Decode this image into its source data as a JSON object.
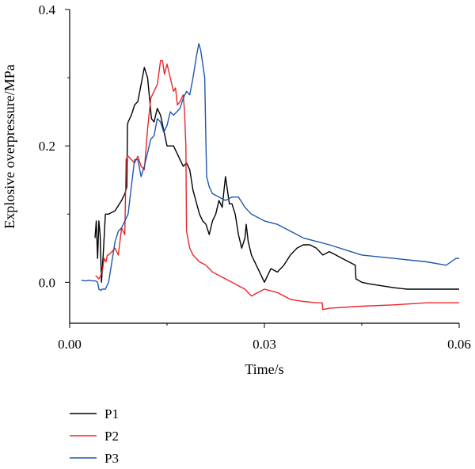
{
  "chart_data": {
    "type": "line",
    "xlabel": "Time/s",
    "ylabel": "Explosive overpressure/MPa",
    "xlim": [
      0.0,
      0.06
    ],
    "ylim": [
      -0.06,
      0.4
    ],
    "x_ticks": [
      0.0,
      0.03,
      0.06
    ],
    "x_tick_labels": [
      "0.00",
      "0.03",
      "0.06"
    ],
    "y_ticks": [
      0.0,
      0.2,
      0.4
    ],
    "y_tick_labels": [
      "0.0",
      "0.2",
      "0.4"
    ],
    "grid": false,
    "legend_position": "bottom-left",
    "colors": {
      "P1": "#000000",
      "P2": "#e8262a",
      "P3": "#1f56b0"
    },
    "series": [
      {
        "name": "P1",
        "x": [
          0.0039,
          0.0041,
          0.0043,
          0.0045,
          0.0047,
          0.0049,
          0.0052,
          0.0055,
          0.006,
          0.007,
          0.008,
          0.0085,
          0.0088,
          0.0089,
          0.009,
          0.0095,
          0.01,
          0.0105,
          0.011,
          0.0115,
          0.012,
          0.0123,
          0.0126,
          0.013,
          0.0135,
          0.014,
          0.015,
          0.016,
          0.017,
          0.0175,
          0.018,
          0.0185,
          0.019,
          0.02,
          0.0205,
          0.021,
          0.0215,
          0.022,
          0.0225,
          0.023,
          0.0235,
          0.024,
          0.0243,
          0.0246,
          0.025,
          0.0255,
          0.026,
          0.0265,
          0.027,
          0.0272,
          0.0275,
          0.028,
          0.029,
          0.03,
          0.031,
          0.032,
          0.033,
          0.034,
          0.035,
          0.036,
          0.037,
          0.038,
          0.039,
          0.04,
          0.041,
          0.042,
          0.043,
          0.044,
          0.0441,
          0.045,
          0.046,
          0.048,
          0.05,
          0.052,
          0.054,
          0.056,
          0.058,
          0.06
        ],
        "values": [
          0.065,
          0.09,
          0.035,
          0.09,
          0.07,
          0.0,
          0.045,
          0.1,
          0.1,
          0.105,
          0.12,
          0.13,
          0.14,
          0.23,
          0.235,
          0.245,
          0.26,
          0.265,
          0.29,
          0.315,
          0.3,
          0.27,
          0.24,
          0.235,
          0.255,
          0.245,
          0.2,
          0.2,
          0.18,
          0.17,
          0.175,
          0.165,
          0.135,
          0.1,
          0.09,
          0.085,
          0.07,
          0.09,
          0.1,
          0.12,
          0.11,
          0.155,
          0.135,
          0.115,
          0.115,
          0.1,
          0.07,
          0.05,
          0.065,
          0.085,
          0.06,
          0.04,
          0.02,
          0.0,
          0.02,
          0.015,
          0.025,
          0.04,
          0.05,
          0.055,
          0.055,
          0.05,
          0.04,
          0.045,
          0.04,
          0.035,
          0.03,
          0.025,
          0.005,
          0.0,
          -0.002,
          -0.005,
          -0.008,
          -0.01,
          -0.01,
          -0.01,
          -0.01,
          -0.01
        ]
      },
      {
        "name": "P2",
        "x": [
          0.004,
          0.0045,
          0.0048,
          0.0051,
          0.0053,
          0.0056,
          0.0058,
          0.006,
          0.0065,
          0.007,
          0.0075,
          0.008,
          0.0085,
          0.0087,
          0.0089,
          0.009,
          0.0095,
          0.01,
          0.0105,
          0.011,
          0.0115,
          0.012,
          0.0125,
          0.013,
          0.0135,
          0.014,
          0.0143,
          0.0146,
          0.015,
          0.0155,
          0.016,
          0.0163,
          0.0166,
          0.017,
          0.0175,
          0.0177,
          0.0179,
          0.018,
          0.0185,
          0.019,
          0.02,
          0.021,
          0.022,
          0.023,
          0.024,
          0.025,
          0.026,
          0.027,
          0.028,
          0.029,
          0.03,
          0.032,
          0.034,
          0.036,
          0.038,
          0.0389,
          0.039,
          0.04,
          0.045,
          0.05,
          0.055,
          0.06
        ],
        "values": [
          0.01,
          0.005,
          0.01,
          0.02,
          0.035,
          0.03,
          0.04,
          0.04,
          0.045,
          0.05,
          0.04,
          0.08,
          0.07,
          0.18,
          0.185,
          0.185,
          0.18,
          0.175,
          0.185,
          0.17,
          0.165,
          0.225,
          0.27,
          0.28,
          0.29,
          0.325,
          0.325,
          0.305,
          0.32,
          0.3,
          0.28,
          0.285,
          0.26,
          0.265,
          0.275,
          0.25,
          0.2,
          0.075,
          0.05,
          0.04,
          0.03,
          0.025,
          0.015,
          0.01,
          0.005,
          0.0,
          -0.005,
          -0.01,
          -0.02,
          -0.015,
          -0.01,
          -0.015,
          -0.025,
          -0.028,
          -0.03,
          -0.03,
          -0.04,
          -0.038,
          -0.035,
          -0.033,
          -0.03,
          -0.03
        ]
      },
      {
        "name": "P3",
        "x": [
          0.0018,
          0.0025,
          0.003,
          0.0035,
          0.004,
          0.0043,
          0.0045,
          0.0048,
          0.005,
          0.0055,
          0.006,
          0.0065,
          0.007,
          0.0075,
          0.008,
          0.0085,
          0.009,
          0.0095,
          0.01,
          0.0105,
          0.011,
          0.0115,
          0.012,
          0.0125,
          0.013,
          0.0135,
          0.014,
          0.0145,
          0.015,
          0.0155,
          0.016,
          0.0165,
          0.017,
          0.0175,
          0.018,
          0.0185,
          0.019,
          0.0195,
          0.0199,
          0.0202,
          0.0205,
          0.0208,
          0.021,
          0.0211,
          0.0215,
          0.022,
          0.023,
          0.024,
          0.025,
          0.026,
          0.027,
          0.028,
          0.03,
          0.032,
          0.034,
          0.036,
          0.038,
          0.04,
          0.045,
          0.05,
          0.055,
          0.058,
          0.0595,
          0.06
        ],
        "values": [
          0.003,
          0.002,
          0.003,
          0.002,
          0.002,
          0.0,
          -0.01,
          -0.012,
          -0.01,
          -0.01,
          0.0,
          0.03,
          0.06,
          0.075,
          0.08,
          0.09,
          0.1,
          0.14,
          0.18,
          0.18,
          0.155,
          0.17,
          0.19,
          0.21,
          0.215,
          0.24,
          0.235,
          0.22,
          0.23,
          0.25,
          0.245,
          0.25,
          0.255,
          0.27,
          0.28,
          0.275,
          0.3,
          0.33,
          0.35,
          0.34,
          0.32,
          0.3,
          0.2,
          0.155,
          0.14,
          0.13,
          0.125,
          0.12,
          0.125,
          0.125,
          0.11,
          0.1,
          0.09,
          0.085,
          0.075,
          0.065,
          0.06,
          0.055,
          0.04,
          0.035,
          0.03,
          0.025,
          0.035,
          0.035
        ]
      }
    ]
  }
}
